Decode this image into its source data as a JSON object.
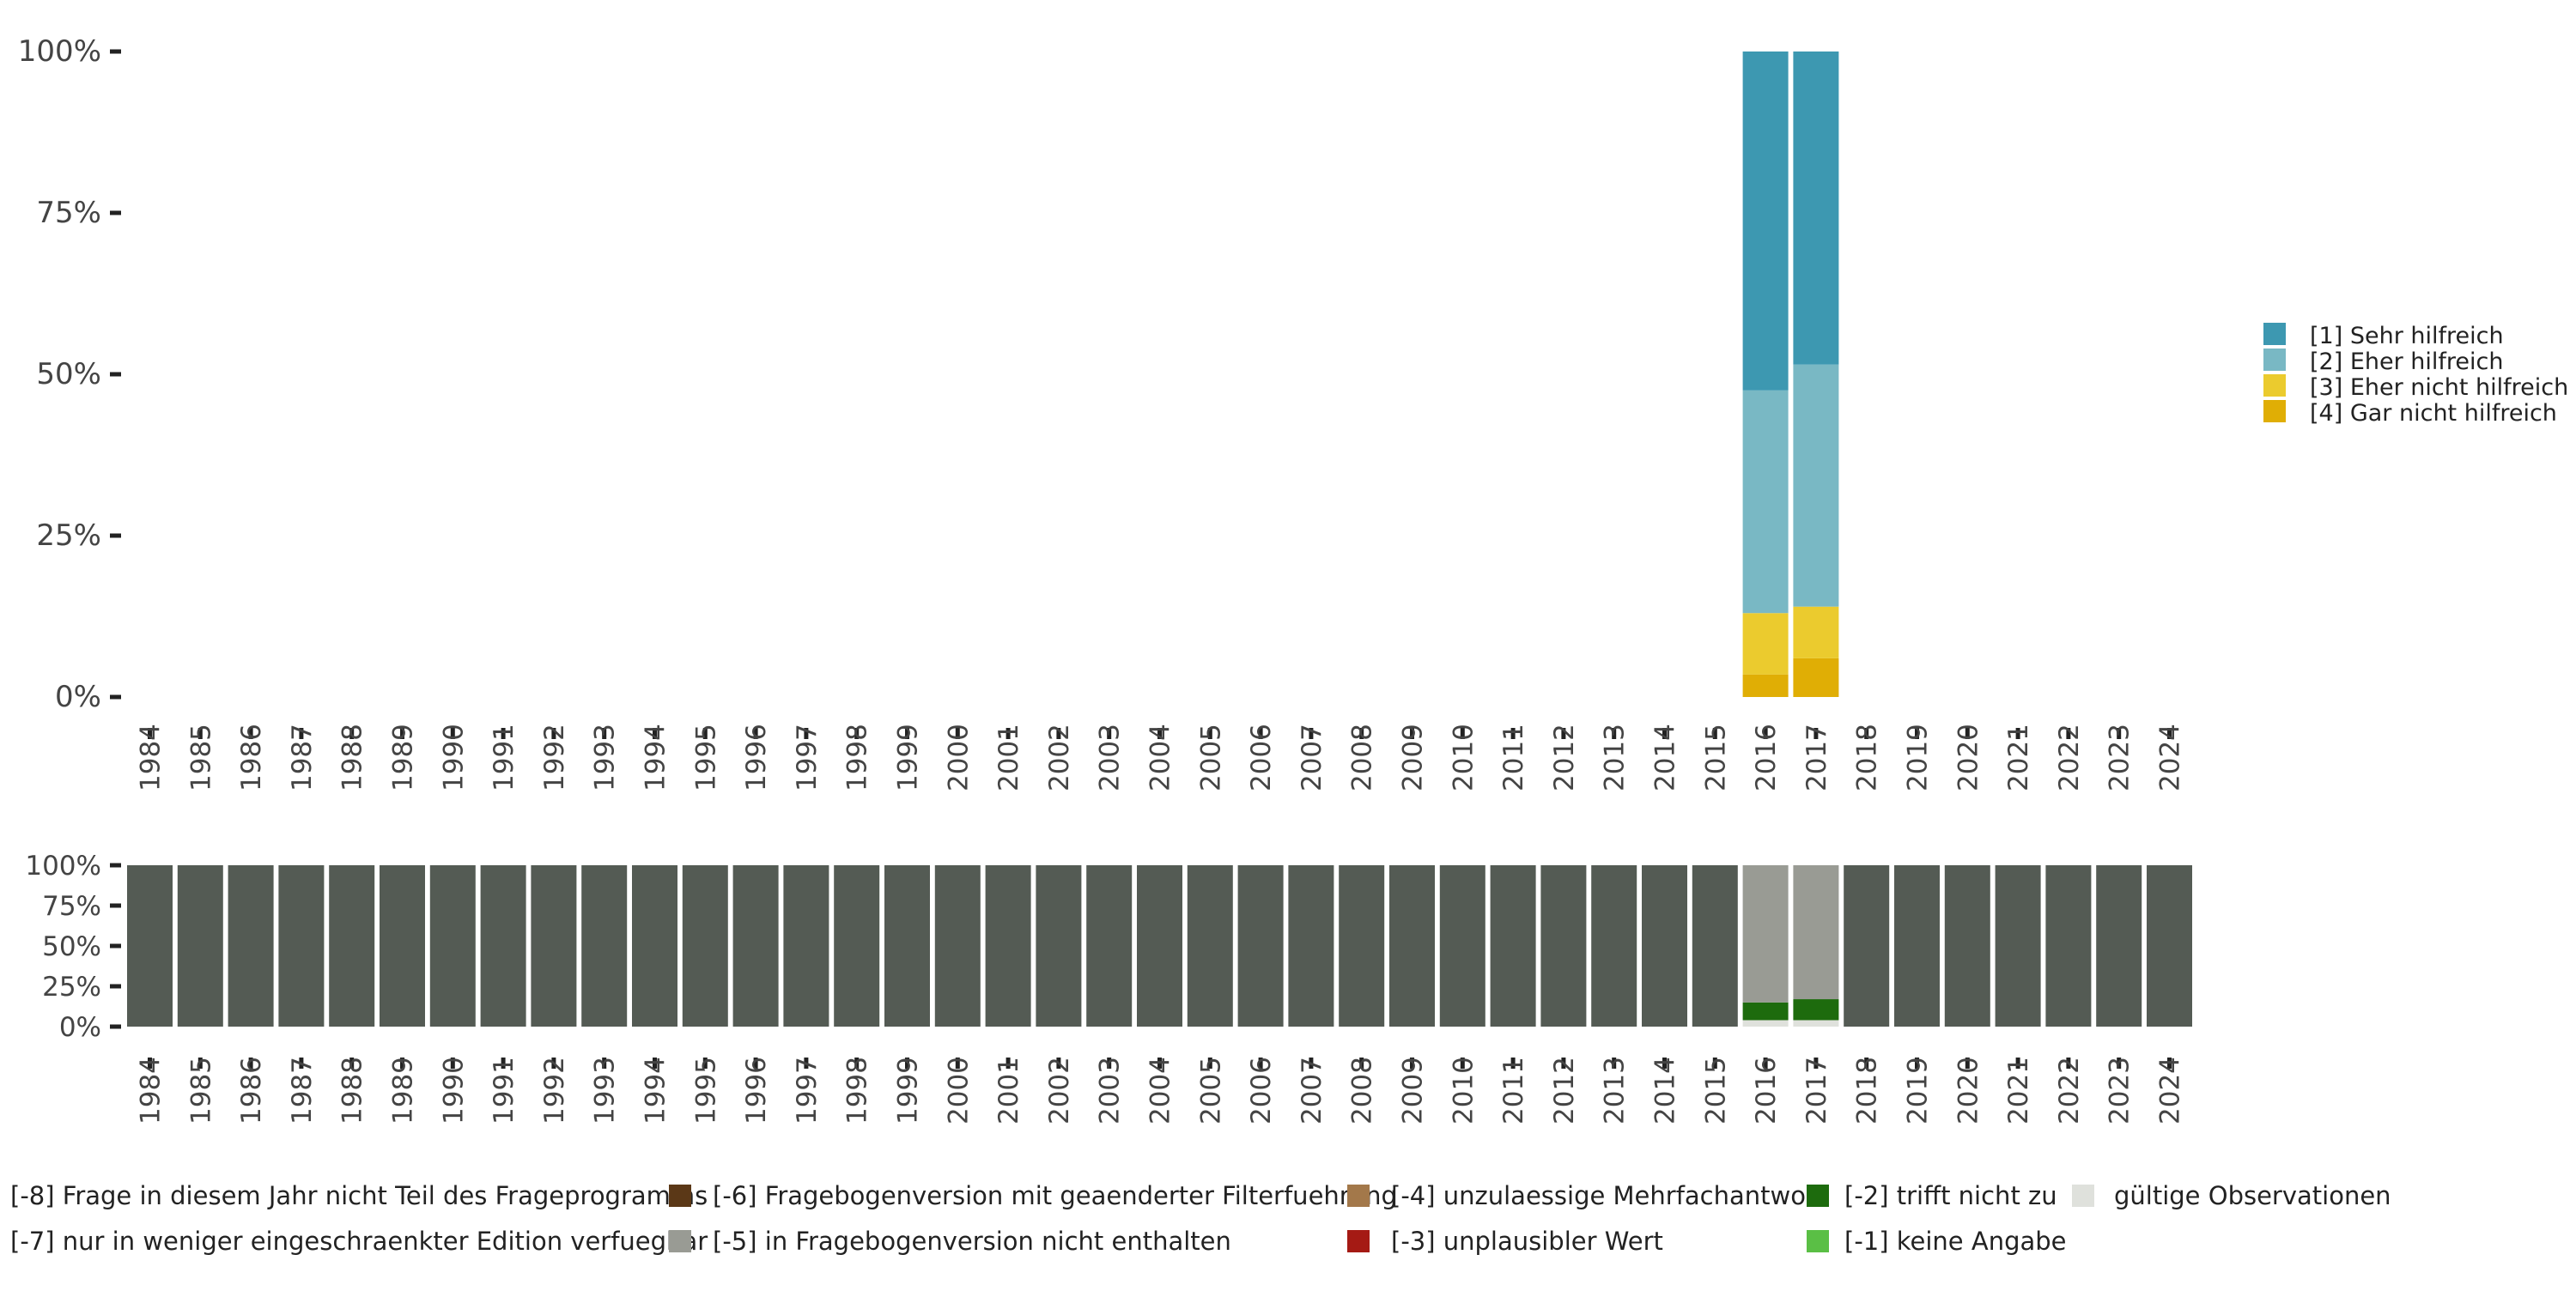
{
  "chart_data": [
    {
      "type": "bar",
      "stacked": true,
      "title": "",
      "xlabel": "",
      "ylabel": "",
      "categories": [
        "1984",
        "1985",
        "1986",
        "1987",
        "1988",
        "1989",
        "1990",
        "1991",
        "1992",
        "1993",
        "1994",
        "1995",
        "1996",
        "1997",
        "1998",
        "1999",
        "2000",
        "2001",
        "2002",
        "2003",
        "2004",
        "2005",
        "2006",
        "2007",
        "2008",
        "2009",
        "2010",
        "2011",
        "2012",
        "2013",
        "2014",
        "2015",
        "2016",
        "2017",
        "2018",
        "2019",
        "2020",
        "2021",
        "2022",
        "2023",
        "2024"
      ],
      "ylim": [
        0,
        100
      ],
      "yticks": [
        "0%",
        "25%",
        "50%",
        "75%",
        "100%"
      ],
      "legend_position": "right",
      "series": [
        {
          "name": "[4] Gar nicht hilfreich",
          "color": "#e0ae05",
          "values": {
            "2016": 3.5,
            "2017": 6
          }
        },
        {
          "name": "[3] Eher nicht hilfreich",
          "color": "#ebcb2e",
          "values": {
            "2016": 9.5,
            "2017": 8
          }
        },
        {
          "name": "[2] Eher hilfreich",
          "color": "#79b8c4",
          "values": {
            "2016": 34.5,
            "2017": 37.5
          }
        },
        {
          "name": "[1] Sehr hilfreich",
          "color": "#3d98b1",
          "values": {
            "2016": 52.5,
            "2017": 48.5
          }
        }
      ],
      "legend": [
        {
          "label": "[1] Sehr hilfreich",
          "color": "#3d98b1"
        },
        {
          "label": "[2] Eher hilfreich",
          "color": "#79b8c4"
        },
        {
          "label": "[3] Eher nicht hilfreich",
          "color": "#ebcb2e"
        },
        {
          "label": "[4] Gar nicht hilfreich",
          "color": "#e0ae05"
        }
      ]
    },
    {
      "type": "bar",
      "stacked": true,
      "title": "",
      "xlabel": "",
      "ylabel": "",
      "categories": [
        "1984",
        "1985",
        "1986",
        "1987",
        "1988",
        "1989",
        "1990",
        "1991",
        "1992",
        "1993",
        "1994",
        "1995",
        "1996",
        "1997",
        "1998",
        "1999",
        "2000",
        "2001",
        "2002",
        "2003",
        "2004",
        "2005",
        "2006",
        "2007",
        "2008",
        "2009",
        "2010",
        "2011",
        "2012",
        "2013",
        "2014",
        "2015",
        "2016",
        "2017",
        "2018",
        "2019",
        "2020",
        "2021",
        "2022",
        "2023",
        "2024"
      ],
      "ylim": [
        0,
        100
      ],
      "yticks": [
        "0%",
        "25%",
        "50%",
        "75%",
        "100%"
      ],
      "legend_position": "bottom",
      "series": [
        {
          "name": "gültige Observationen",
          "color": "#dfe1dc",
          "values": {
            "2016": 4,
            "2017": 4
          }
        },
        {
          "name": "[-2] trifft nicht zu",
          "color": "#1d6b0d",
          "values": {
            "2016": 11,
            "2017": 13
          }
        },
        {
          "name": "[-5] in Fragebogenversion nicht enthalten",
          "color": "#999b94",
          "values": {
            "2016": 85,
            "2017": 83
          }
        },
        {
          "name": "[-8] Frage in diesem Jahr nicht Teil des Frageprogramms",
          "color": "#545b54",
          "default": 100,
          "values": {
            "2016": 0,
            "2017": 0
          }
        }
      ],
      "legend": [
        {
          "label": "[-8] Frage in diesem Jahr nicht Teil des Frageprogramms",
          "color": "#545b54"
        },
        {
          "label": "[-7] nur in weniger eingeschraenkter Edition verfuegbar",
          "color": "#999b94"
        },
        {
          "label": "[-6] Fragebogenversion mit geaenderter Filterfuehrung",
          "color": "#5b3817"
        },
        {
          "label": "[-5] in Fragebogenversion nicht enthalten",
          "color": "#999b94"
        },
        {
          "label": "[-4] unzulaessige Mehrfachantwort",
          "color": "#a3784a"
        },
        {
          "label": "[-3] unplausibler Wert",
          "color": "#a51a14"
        },
        {
          "label": "[-2] trifft nicht zu",
          "color": "#1d6b0d"
        },
        {
          "label": "[-1] keine Angabe",
          "color": "#5abf45"
        },
        {
          "label": "gültige Observationen",
          "color": "#dfe1dc"
        }
      ]
    }
  ]
}
